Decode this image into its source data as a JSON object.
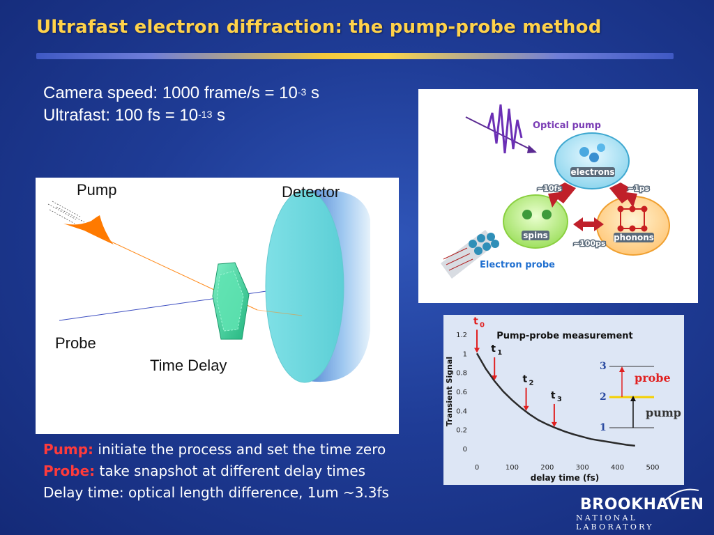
{
  "title": "Ultrafast electron diffraction: the pump-probe method",
  "camera": {
    "line1": "Camera speed: 1000 frame/s = 10",
    "line1_exp": "-3",
    "line1_unit": " s",
    "line2": "Ultrafast: 100 fs = 10",
    "line2_exp": "-13",
    "line2_unit": " s"
  },
  "diagram": {
    "pump": "Pump",
    "detector": "Detector",
    "probe": "Probe",
    "time_delay": "Time Delay"
  },
  "notes": {
    "pump_key": "Pump:",
    "pump_text": " initiate the process and set the time zero",
    "probe_key": "Probe:",
    "probe_text": " take snapshot at different delay times",
    "delay_text": "Delay time: optical length difference, 1um ~3.3fs"
  },
  "pump_probe_diagram": {
    "optical_pump": "Optical pump",
    "electrons": "electrons",
    "spins": "spins",
    "phonons": "phonons",
    "t10fs": "~10fs",
    "t1ps": "~1ps",
    "t100ps": "~100ps",
    "electron_probe": "Electron probe"
  },
  "chart_data": {
    "type": "line",
    "title": "Pump-probe measurement",
    "xlabel": "delay time (fs)",
    "ylabel": "Transient Signal",
    "xlim": [
      0,
      500
    ],
    "ylim": [
      0,
      1.2
    ],
    "x_ticks": [
      "0",
      "100",
      "200",
      "300",
      "400",
      "500"
    ],
    "y_ticks": [
      "0",
      "0.2",
      "0.4",
      "0.6",
      "0.8",
      "1",
      "1.2"
    ],
    "series": [
      {
        "x": [
          0,
          25,
          50,
          75,
          100,
          125,
          150,
          175,
          200,
          225,
          250,
          275,
          300,
          325,
          350,
          375,
          400,
          425,
          450
        ],
        "y": [
          1.0,
          0.84,
          0.71,
          0.6,
          0.51,
          0.43,
          0.36,
          0.3,
          0.255,
          0.215,
          0.18,
          0.15,
          0.125,
          0.1,
          0.085,
          0.07,
          0.055,
          0.04,
          0.03
        ]
      }
    ],
    "markers": [
      {
        "label": "t",
        "sub": "0",
        "x": 0,
        "y": 1.0,
        "color": "#e02020"
      },
      {
        "label": "t",
        "sub": "1",
        "x": 50,
        "y": 0.71,
        "color": "#111111"
      },
      {
        "label": "t",
        "sub": "2",
        "x": 140,
        "y": 0.39,
        "color": "#111111"
      },
      {
        "label": "t",
        "sub": "3",
        "x": 220,
        "y": 0.22,
        "color": "#111111"
      }
    ],
    "levels": [
      "1",
      "2",
      "3"
    ],
    "probe_label": "probe",
    "pump_label": "pump"
  },
  "logo": {
    "name": "BROOKHAVEN",
    "sub": "NATIONAL LABORATORY"
  }
}
